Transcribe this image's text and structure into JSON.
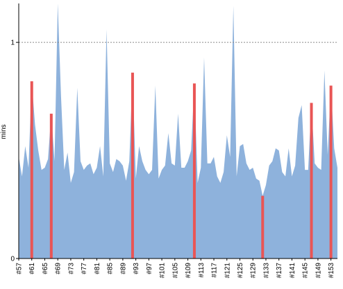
{
  "chart_data": {
    "type": "area",
    "y_label": "mins",
    "categories": [
      "#57",
      null,
      null,
      null,
      "#61",
      null,
      null,
      null,
      "#65",
      null,
      null,
      null,
      "#69",
      null,
      null,
      null,
      "#73",
      null,
      null,
      null,
      "#77",
      null,
      null,
      null,
      "#81",
      null,
      null,
      null,
      "#85",
      null,
      null,
      null,
      "#89",
      null,
      null,
      null,
      "#93",
      null,
      null,
      null,
      "#97",
      null,
      null,
      null,
      "#101",
      null,
      null,
      null,
      "#105",
      null,
      null,
      null,
      "#109",
      null,
      null,
      null,
      "#113",
      null,
      null,
      null,
      "#117",
      null,
      null,
      null,
      "#121",
      null,
      null,
      null,
      "#125",
      null,
      null,
      null,
      "#129",
      null,
      null,
      null,
      "#133",
      null,
      null,
      null,
      "#137",
      null,
      null,
      null,
      "#141",
      null,
      null,
      null,
      "#145",
      null,
      null,
      null,
      "#149",
      null,
      null,
      null,
      "#153",
      null,
      null
    ],
    "values": [
      0.47,
      0.38,
      0.52,
      0.42,
      0.82,
      0.62,
      0.5,
      0.41,
      0.42,
      0.46,
      0.67,
      0.45,
      1.18,
      0.75,
      0.41,
      0.49,
      0.35,
      0.4,
      0.79,
      0.45,
      0.41,
      0.43,
      0.44,
      0.39,
      0.42,
      0.52,
      0.38,
      1.06,
      0.44,
      0.4,
      0.46,
      0.45,
      0.43,
      0.36,
      0.45,
      0.86,
      0.37,
      0.52,
      0.45,
      0.41,
      0.39,
      0.41,
      0.8,
      0.37,
      0.41,
      0.43,
      0.58,
      0.44,
      0.43,
      0.67,
      0.42,
      0.42,
      0.45,
      0.5,
      0.81,
      0.35,
      0.42,
      0.93,
      0.44,
      0.44,
      0.47,
      0.38,
      0.35,
      0.4,
      0.57,
      0.47,
      1.17,
      0.38,
      0.52,
      0.53,
      0.44,
      0.41,
      0.42,
      0.37,
      0.36,
      0.29,
      0.34,
      0.43,
      0.45,
      0.51,
      0.5,
      0.4,
      0.38,
      0.51,
      0.38,
      0.43,
      0.65,
      0.71,
      0.41,
      0.41,
      0.72,
      0.44,
      0.42,
      0.41,
      0.87,
      0.48,
      0.8,
      0.51,
      0.42
    ],
    "failed": [
      4,
      10,
      35,
      54,
      75,
      90,
      96
    ],
    "color": "#8eb2dc",
    "failed_color": "#e95555",
    "ylim": [
      0,
      1.18
    ],
    "yticks": [
      0,
      1
    ],
    "grid": true
  }
}
